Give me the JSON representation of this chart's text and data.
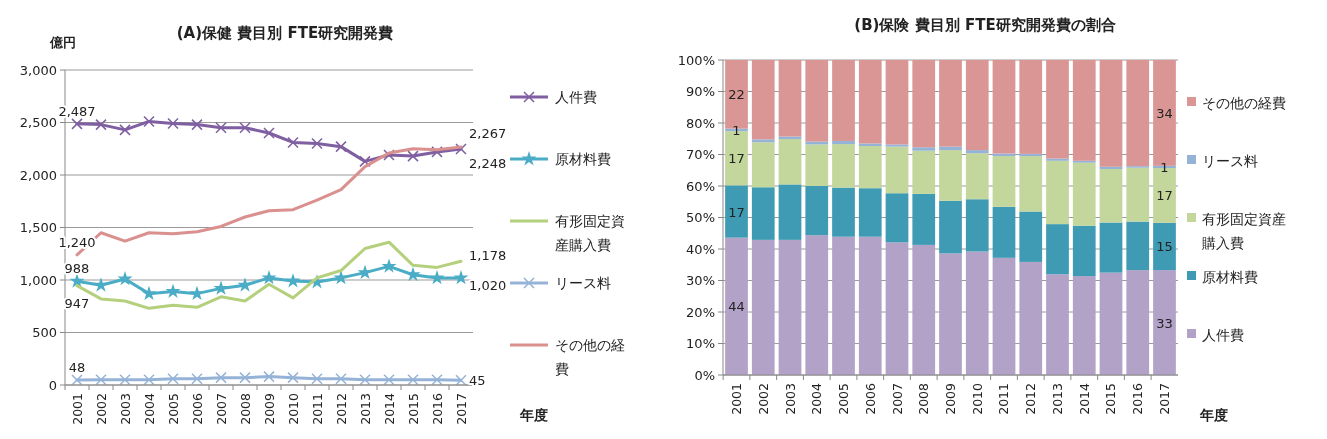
{
  "chart_data": [
    {
      "type": "line",
      "title": "(A)保健  費目別  FTE研究開発費",
      "ylabel": "億円",
      "xlabel": "年度",
      "categories": [
        "2001",
        "2002",
        "2003",
        "2004",
        "2005",
        "2006",
        "2007",
        "2008",
        "2009",
        "2010",
        "2011",
        "2012",
        "2013",
        "2014",
        "2015",
        "2016",
        "2017"
      ],
      "ylim": [
        0,
        3000
      ],
      "yticks": [
        0,
        500,
        {
          "value": 1000,
          "label": "1,000"
        },
        {
          "value": 1500,
          "label": "1,500"
        },
        {
          "value": 2000,
          "label": "2,000"
        },
        {
          "value": 2500,
          "label": "2,500"
        },
        {
          "value": 3000,
          "label": "3,000"
        }
      ],
      "grid": "y",
      "legend": "right",
      "series": [
        {
          "name": "人件費",
          "color": "#7f5fa1",
          "marker": "cross",
          "values": [
            2487,
            2480,
            2430,
            2510,
            2490,
            2480,
            2450,
            2450,
            2400,
            2310,
            2300,
            2270,
            2130,
            2190,
            2180,
            2220,
            2248
          ],
          "value_labels": [
            "2,487",
            null,
            null,
            null,
            null,
            null,
            null,
            null,
            null,
            null,
            null,
            null,
            null,
            null,
            null,
            null,
            "2,248"
          ]
        },
        {
          "name": "原材料費",
          "color": "#4bacc6",
          "marker": "star",
          "values": [
            988,
            950,
            1010,
            870,
            890,
            870,
            920,
            950,
            1020,
            990,
            980,
            1020,
            1070,
            1130,
            1050,
            1020,
            1020
          ],
          "value_labels": [
            "988",
            null,
            null,
            null,
            null,
            null,
            null,
            null,
            null,
            null,
            null,
            null,
            null,
            null,
            null,
            null,
            "1,020"
          ]
        },
        {
          "name": "有形固定資産購入費",
          "color": "#b4d07c",
          "marker": "none",
          "values": [
            947,
            820,
            800,
            730,
            760,
            740,
            840,
            800,
            960,
            830,
            1020,
            1090,
            1300,
            1360,
            1140,
            1120,
            1178
          ],
          "value_labels": [
            "947",
            null,
            null,
            null,
            null,
            null,
            null,
            null,
            null,
            null,
            null,
            null,
            null,
            null,
            null,
            null,
            "1,178"
          ]
        },
        {
          "name": "リース料",
          "color": "#95b3d7",
          "marker": "cross",
          "values": [
            48,
            50,
            50,
            50,
            60,
            60,
            70,
            70,
            80,
            70,
            60,
            60,
            50,
            50,
            50,
            50,
            45
          ],
          "value_labels": [
            "48",
            null,
            null,
            null,
            null,
            null,
            null,
            null,
            null,
            null,
            null,
            null,
            null,
            null,
            null,
            null,
            "45"
          ]
        },
        {
          "name": "その他の経費",
          "color": "#d9908e",
          "marker": "none",
          "values": [
            1240,
            1450,
            1370,
            1450,
            1440,
            1460,
            1510,
            1600,
            1660,
            1670,
            1760,
            1860,
            2080,
            2210,
            2250,
            2240,
            2267
          ],
          "value_labels": [
            "1,240",
            null,
            null,
            null,
            null,
            null,
            null,
            null,
            null,
            null,
            null,
            null,
            null,
            null,
            null,
            null,
            "2,267"
          ]
        }
      ]
    },
    {
      "type": "bar",
      "stacked": true,
      "title": "(B)保険  費目別 FTE研究開発費の割合",
      "xlabel": "年度",
      "categories": [
        "2001",
        "2002",
        "2003",
        "2004",
        "2005",
        "2006",
        "2007",
        "2008",
        "2009",
        "2010",
        "2011",
        "2012",
        "2013",
        "2014",
        "2015",
        "2016",
        "2017"
      ],
      "ylim": [
        0,
        100
      ],
      "yticks": [
        {
          "value": 0,
          "label": "0%"
        },
        {
          "value": 10,
          "label": "10%"
        },
        {
          "value": 20,
          "label": "20%"
        },
        {
          "value": 30,
          "label": "30%"
        },
        {
          "value": 40,
          "label": "40%"
        },
        {
          "value": 50,
          "label": "50%"
        },
        {
          "value": 60,
          "label": "60%"
        },
        {
          "value": 70,
          "label": "70%"
        },
        {
          "value": 80,
          "label": "80%"
        },
        {
          "value": 90,
          "label": "90%"
        },
        {
          "value": 100,
          "label": "100%"
        }
      ],
      "grid": "y",
      "legend": "right",
      "series": [
        {
          "name": "人件費",
          "color": "#b3a2c7",
          "values": [
            43.6,
            42.9,
            42.9,
            44.4,
            43.9,
            43.9,
            42.1,
            41.3,
            38.6,
            39.2,
            37.2,
            35.9,
            32.0,
            31.4,
            32.5,
            33.3,
            33.3
          ],
          "value_labels": [
            "44",
            null,
            null,
            null,
            null,
            null,
            null,
            null,
            null,
            null,
            null,
            null,
            null,
            null,
            null,
            null,
            "33"
          ]
        },
        {
          "name": "原材料費",
          "color": "#3f9bb3",
          "values": [
            16.6,
            16.7,
            17.6,
            15.6,
            15.6,
            15.4,
            15.6,
            16.2,
            16.7,
            16.6,
            16.2,
            16.0,
            15.9,
            16.0,
            15.9,
            15.4,
            15.0
          ],
          "value_labels": [
            "17",
            null,
            null,
            null,
            null,
            null,
            null,
            null,
            null,
            null,
            null,
            null,
            null,
            null,
            null,
            null,
            "15"
          ]
        },
        {
          "name": "有形固定資産購入費",
          "color": "#c3d69b",
          "values": [
            17.2,
            14.3,
            14.4,
            13.2,
            13.8,
            13.4,
            14.8,
            13.7,
            16.1,
            14.6,
            16.1,
            17.6,
            20.1,
            20.0,
            17.0,
            17.1,
            17.4
          ],
          "value_labels": [
            "17",
            null,
            null,
            null,
            null,
            null,
            null,
            null,
            null,
            null,
            null,
            null,
            null,
            null,
            null,
            null,
            "17"
          ]
        },
        {
          "name": "リース料",
          "color": "#95b3d7",
          "values": [
            0.8,
            0.9,
            0.8,
            0.9,
            1.0,
            0.8,
            0.7,
            1.1,
            1.1,
            1.0,
            0.8,
            0.7,
            0.7,
            0.6,
            0.7,
            0.5,
            0.7
          ],
          "value_labels": [
            "1",
            null,
            null,
            null,
            null,
            null,
            null,
            null,
            null,
            null,
            null,
            null,
            null,
            null,
            null,
            null,
            "1"
          ]
        },
        {
          "name": "その他の経費",
          "color": "#d99694",
          "values": [
            21.8,
            25.2,
            24.3,
            25.9,
            25.7,
            26.5,
            26.8,
            27.7,
            27.5,
            28.6,
            29.7,
            29.8,
            31.3,
            32.0,
            33.9,
            33.7,
            33.6
          ],
          "value_labels": [
            "22",
            null,
            null,
            null,
            null,
            null,
            null,
            null,
            null,
            null,
            null,
            null,
            null,
            null,
            null,
            null,
            "34"
          ]
        }
      ]
    }
  ]
}
